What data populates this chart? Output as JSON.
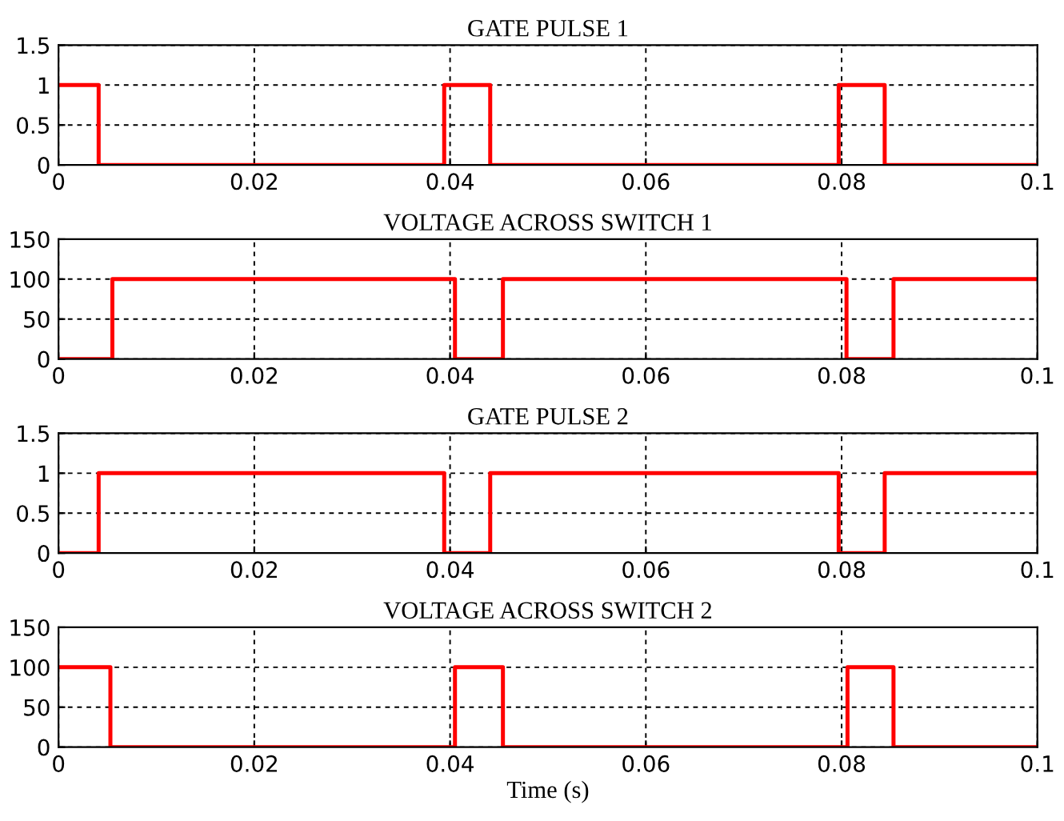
{
  "chart_data": [
    {
      "type": "step",
      "title": "GATE PULSE 1",
      "x": [
        0,
        0.0041,
        0.0394,
        0.0441,
        0.0797,
        0.0844,
        0.1
      ],
      "series": [
        {
          "color": "#ff0000",
          "values": [
            1,
            0,
            1,
            0,
            1,
            0,
            0
          ]
        }
      ],
      "xlim": [
        0,
        0.1
      ],
      "xticks": [
        0,
        0.02,
        0.04,
        0.06,
        0.08,
        0.1
      ],
      "ylim": [
        0,
        1.5
      ],
      "yticks": [
        0,
        0.5,
        1,
        1.5
      ],
      "grid": true,
      "line_style": "solid"
    },
    {
      "type": "step",
      "title": "VOLTAGE ACROSS SWITCH 1",
      "x": [
        0,
        0.0055,
        0.0405,
        0.0454,
        0.0805,
        0.0853,
        0.1
      ],
      "series": [
        {
          "color": "#ff0000",
          "values": [
            0,
            100,
            0,
            100,
            0,
            100,
            100
          ]
        }
      ],
      "xlim": [
        0,
        0.1
      ],
      "xticks": [
        0,
        0.02,
        0.04,
        0.06,
        0.08,
        0.1
      ],
      "ylim": [
        0,
        150
      ],
      "yticks": [
        0,
        50,
        100,
        150
      ],
      "grid": true,
      "line_style": "solid"
    },
    {
      "type": "step",
      "title": "GATE PULSE 2",
      "x": [
        0,
        0.0041,
        0.0394,
        0.0441,
        0.0797,
        0.0844,
        0.1
      ],
      "series": [
        {
          "color": "#ff0000",
          "values": [
            0,
            1,
            0,
            1,
            0,
            1,
            1
          ]
        }
      ],
      "xlim": [
        0,
        0.1
      ],
      "xticks": [
        0,
        0.02,
        0.04,
        0.06,
        0.08,
        0.1
      ],
      "ylim": [
        0,
        1.5
      ],
      "yticks": [
        0,
        0.5,
        1,
        1.5
      ],
      "grid": true,
      "line_style": "solid"
    },
    {
      "type": "step",
      "title": "VOLTAGE ACROSS SWITCH 2",
      "xlabel": "Time (s)",
      "x": [
        0,
        0.0053,
        0.0405,
        0.0454,
        0.0806,
        0.0853,
        0.1
      ],
      "series": [
        {
          "color": "#ff0000",
          "values": [
            100,
            0,
            100,
            0,
            100,
            0,
            0
          ]
        }
      ],
      "xlim": [
        0,
        0.1
      ],
      "xticks": [
        0,
        0.02,
        0.04,
        0.06,
        0.08,
        0.1
      ],
      "ylim": [
        0,
        150
      ],
      "yticks": [
        0,
        50,
        100,
        150
      ],
      "grid": true,
      "line_style": "solid"
    }
  ]
}
